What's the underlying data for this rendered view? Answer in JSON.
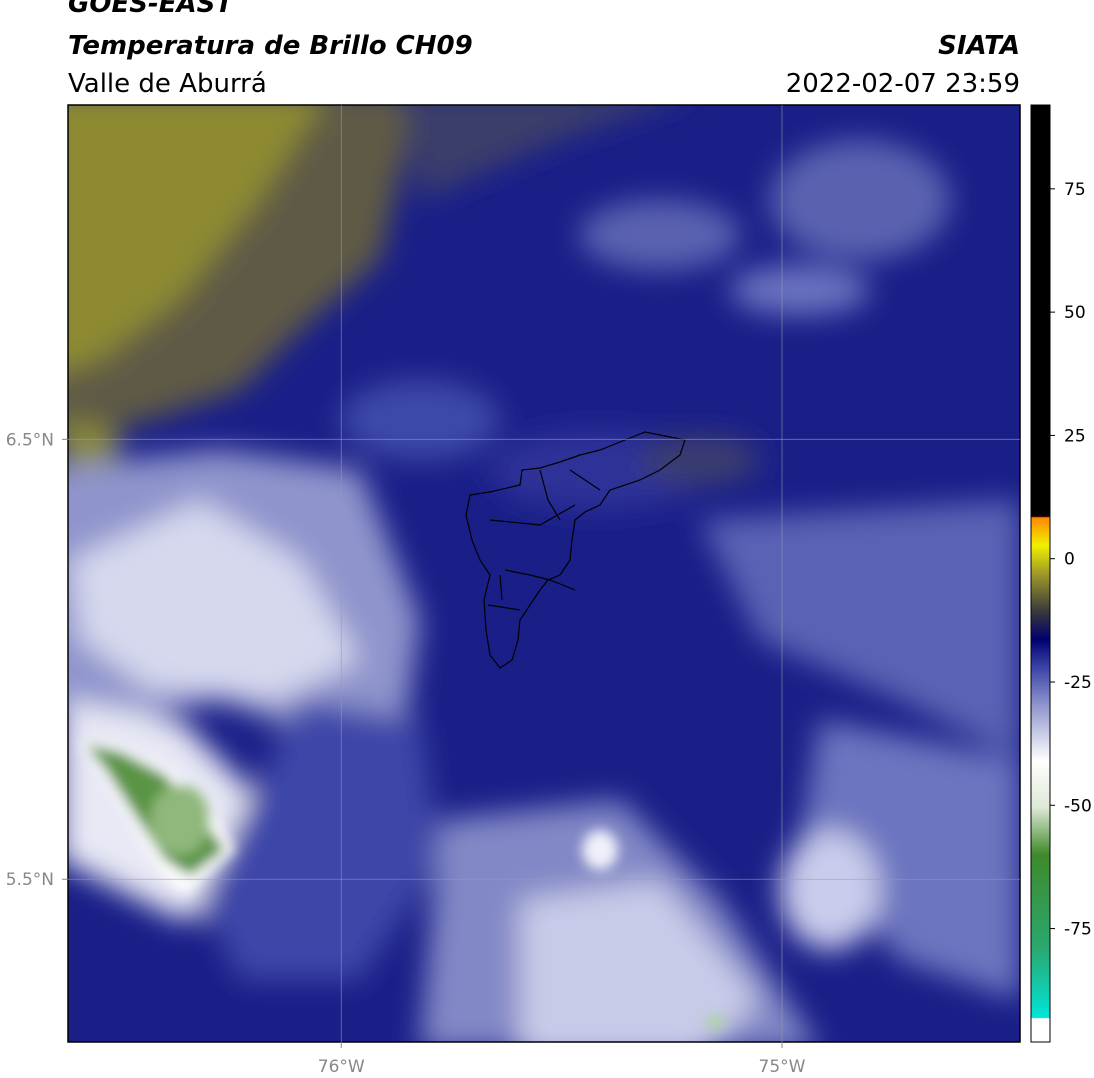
{
  "header": {
    "title": "GOES-EAST",
    "subtitle": "Temperatura de Brillo CH09",
    "region": "Valle de Aburrá",
    "source": "SIATA",
    "datetime": "2022-02-07 23:59"
  },
  "map": {
    "xlim": [
      -76.62,
      -74.46
    ],
    "ylim": [
      5.13,
      7.26
    ],
    "xticks": [
      {
        "value": -76,
        "label": "76°W"
      },
      {
        "value": -75,
        "label": "75°W"
      }
    ],
    "yticks": [
      {
        "value": 6.5,
        "label": "6.5°N"
      },
      {
        "value": 5.5,
        "label": "5.5°N"
      }
    ]
  },
  "colorbar": {
    "lim": [
      -98,
      92
    ],
    "ticks": [
      75,
      50,
      25,
      0,
      -25,
      -50,
      -75
    ]
  }
}
